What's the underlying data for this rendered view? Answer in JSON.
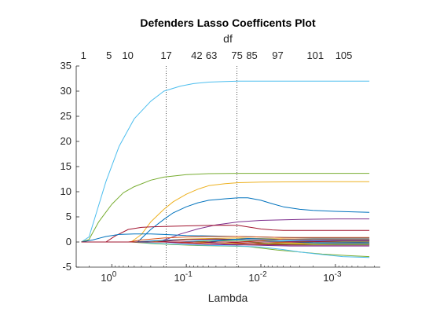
{
  "chart_data": {
    "type": "line",
    "title": "Defenders Lasso Coefficents Plot",
    "xlabel": "Lambda",
    "ylabel": "",
    "top_axis_label": "df",
    "x_scale": "log",
    "x_reversed": true,
    "xlim": [
      3.0,
      0.00025
    ],
    "ylim": [
      -5,
      35
    ],
    "x_tick_values": [
      1,
      0.1,
      0.01,
      0.001
    ],
    "x_tick_base": "10",
    "x_tick_exponents": [
      "0",
      "-1",
      "-2",
      "-3"
    ],
    "y_ticks": [
      -5,
      0,
      5,
      10,
      15,
      20,
      25,
      30,
      35
    ],
    "top_ticks": [
      {
        "label": "1",
        "lambda": 2.4
      },
      {
        "label": "5",
        "lambda": 1.09
      },
      {
        "label": "10",
        "lambda": 0.61
      },
      {
        "label": "17",
        "lambda": 0.186
      },
      {
        "label": "42",
        "lambda": 0.0726
      },
      {
        "label": "63",
        "lambda": 0.046
      },
      {
        "label": "75",
        "lambda": 0.0209
      },
      {
        "label": "85",
        "lambda": 0.0132
      },
      {
        "label": "97",
        "lambda": 0.00593
      },
      {
        "label": "101",
        "lambda": 0.00186
      },
      {
        "label": "105",
        "lambda": 0.000772
      }
    ],
    "reference_lines": [
      {
        "lambda": 0.186,
        "style": "dotted"
      },
      {
        "lambda": 0.0209,
        "style": "dotted"
      }
    ],
    "grid": false,
    "legend": "none",
    "series": [
      {
        "color": "#4DBEEE",
        "x": [
          2.56,
          2.02,
          1.2,
          0.8,
          0.5,
          0.3,
          0.2,
          0.12,
          0.08,
          0.05,
          0.03,
          0.02,
          0.01,
          0.005,
          0.002,
          0.00035
        ],
        "values": [
          0,
          1.0,
          12.0,
          19.0,
          24.5,
          28.0,
          30.0,
          31.0,
          31.5,
          31.8,
          31.9,
          32.0,
          32.0,
          32.0,
          32.0,
          32.0
        ]
      },
      {
        "color": "#77AC30",
        "x": [
          2.56,
          2.02,
          1.5,
          1.0,
          0.7,
          0.5,
          0.3,
          0.2,
          0.1,
          0.05,
          0.02,
          0.01,
          0.001,
          0.00035
        ],
        "values": [
          0,
          0.5,
          4.0,
          7.5,
          9.8,
          11.0,
          12.3,
          12.9,
          13.4,
          13.6,
          13.65,
          13.65,
          13.65,
          13.65
        ]
      },
      {
        "color": "#EDB120",
        "x": [
          2.56,
          0.55,
          0.4,
          0.3,
          0.2,
          0.15,
          0.1,
          0.07,
          0.05,
          0.03,
          0.02,
          0.01,
          0.005,
          0.002,
          0.00035
        ],
        "values": [
          0,
          0,
          1.5,
          4.0,
          6.5,
          8.0,
          9.5,
          10.5,
          11.2,
          11.6,
          11.8,
          11.9,
          11.95,
          12.0,
          12.0
        ]
      },
      {
        "color": "#0072BD",
        "x": [
          2.56,
          0.45,
          0.3,
          0.2,
          0.15,
          0.1,
          0.07,
          0.05,
          0.03,
          0.02,
          0.015,
          0.01,
          0.007,
          0.005,
          0.003,
          0.002,
          0.001,
          0.0006,
          0.00035
        ],
        "values": [
          0,
          0,
          2.5,
          4.5,
          5.8,
          7.0,
          7.8,
          8.3,
          8.6,
          8.8,
          8.8,
          8.3,
          7.6,
          7.0,
          6.5,
          6.3,
          6.1,
          6.0,
          5.9
        ]
      },
      {
        "color": "#7E2F8E",
        "x": [
          2.56,
          0.25,
          0.18,
          0.12,
          0.07,
          0.04,
          0.02,
          0.01,
          0.003,
          0.001,
          0.00035
        ],
        "values": [
          0,
          0,
          0.6,
          1.6,
          2.6,
          3.4,
          4.0,
          4.3,
          4.5,
          4.6,
          4.6
        ]
      },
      {
        "color": "#A2142F",
        "x": [
          2.56,
          1.2,
          0.9,
          0.6,
          0.4,
          0.3,
          0.2,
          0.1,
          0.05,
          0.03,
          0.02,
          0.015,
          0.01,
          0.007,
          0.005,
          0.003,
          0.001,
          0.00035
        ],
        "values": [
          0,
          0,
          1.2,
          2.5,
          2.9,
          3.0,
          3.1,
          3.2,
          3.3,
          3.35,
          3.3,
          3.0,
          2.6,
          2.4,
          2.3,
          2.3,
          2.3,
          2.3
        ]
      },
      {
        "color": "#0072BD",
        "x": [
          2.56,
          1.8,
          1.2,
          0.8,
          0.5,
          0.3,
          0.2,
          0.1,
          0.05,
          0.02,
          0.01,
          0.005,
          0.002,
          0.001,
          0.00035
        ],
        "values": [
          0,
          0.4,
          1.1,
          1.5,
          1.6,
          1.6,
          1.5,
          1.3,
          1.2,
          1.1,
          1.0,
          0.9,
          0.8,
          0.8,
          0.8
        ]
      },
      {
        "color": "#D95319",
        "x": [
          2.56,
          0.6,
          0.4,
          0.2,
          0.1,
          0.05,
          0.02,
          0.01,
          0.005,
          0.001,
          0.00035
        ],
        "values": [
          0,
          0,
          0.4,
          0.8,
          1.0,
          1.1,
          1.1,
          1.0,
          0.9,
          0.9,
          0.9
        ]
      },
      {
        "color": "#EDB120",
        "x": [
          2.56,
          0.3,
          0.2,
          0.1,
          0.05,
          0.02,
          0.01,
          0.003,
          0.00035
        ],
        "values": [
          0,
          0,
          0.3,
          0.6,
          0.7,
          0.8,
          0.7,
          0.6,
          0.6
        ]
      },
      {
        "color": "#77AC30",
        "x": [
          2.56,
          0.55,
          0.3,
          0.15,
          0.07,
          0.03,
          0.015,
          0.01,
          0.006,
          0.003,
          0.0015,
          0.0007,
          0.00035
        ],
        "values": [
          0,
          0,
          -0.3,
          -0.5,
          -0.7,
          -0.8,
          -0.9,
          -1.2,
          -1.6,
          -2.0,
          -2.4,
          -2.7,
          -2.9
        ]
      },
      {
        "color": "#4DBEEE",
        "x": [
          2.56,
          0.5,
          0.3,
          0.15,
          0.08,
          0.04,
          0.02,
          0.01,
          0.005,
          0.003,
          0.0015,
          0.0008,
          0.00035
        ],
        "values": [
          0,
          0,
          -0.2,
          -0.4,
          -0.6,
          -0.7,
          -0.8,
          -1.0,
          -1.5,
          -2.0,
          -2.5,
          -2.9,
          -3.1
        ]
      },
      {
        "color": "#7E2F8E",
        "x": [
          2.56,
          0.2,
          0.1,
          0.05,
          0.02,
          0.01,
          0.005,
          0.002,
          0.00035
        ],
        "values": [
          0,
          0,
          -0.3,
          -0.5,
          -0.6,
          -0.6,
          -0.6,
          -0.6,
          -0.6
        ]
      },
      {
        "color": "#0072BD",
        "x": [
          2.56,
          0.5,
          0.3,
          0.15,
          0.08,
          0.04,
          0.02,
          0.01,
          0.005,
          0.002,
          0.00035
        ],
        "values": [
          0,
          0,
          0.2,
          0.4,
          0.5,
          0.6,
          0.5,
          0.3,
          0.1,
          0.0,
          -0.1
        ]
      },
      {
        "color": "#A2142F",
        "x": [
          2.56,
          0.25,
          0.15,
          0.08,
          0.04,
          0.02,
          0.01,
          0.005,
          0.002,
          0.00035
        ],
        "values": [
          0,
          0,
          0.3,
          0.5,
          0.6,
          0.5,
          0.4,
          0.3,
          0.2,
          0.2
        ]
      },
      {
        "color": "#D95319",
        "x": [
          2.56,
          0.15,
          0.08,
          0.04,
          0.02,
          0.01,
          0.005,
          0.002,
          0.00035
        ],
        "values": [
          0,
          0,
          -0.2,
          -0.3,
          -0.4,
          -0.3,
          -0.2,
          -0.2,
          -0.2
        ]
      },
      {
        "color": "#77AC30",
        "x": [
          2.56,
          0.1,
          0.05,
          0.02,
          0.01,
          0.005,
          0.002,
          0.00035
        ],
        "values": [
          0,
          0,
          0.2,
          0.3,
          0.3,
          0.2,
          0.1,
          0.1
        ]
      },
      {
        "color": "#EDB120",
        "x": [
          2.56,
          0.08,
          0.04,
          0.02,
          0.01,
          0.005,
          0.002,
          0.00035
        ],
        "values": [
          0,
          0,
          -0.2,
          -0.3,
          -0.5,
          -0.4,
          -0.3,
          -0.3
        ]
      },
      {
        "color": "#4DBEEE",
        "x": [
          2.56,
          0.12,
          0.06,
          0.03,
          0.015,
          0.008,
          0.004,
          0.002,
          0.00035
        ],
        "values": [
          0,
          0,
          0.3,
          0.4,
          0.4,
          0.3,
          0.3,
          0.2,
          0.2
        ]
      },
      {
        "color": "#7E2F8E",
        "x": [
          2.56,
          0.06,
          0.03,
          0.015,
          0.008,
          0.004,
          0.002,
          0.00035
        ],
        "values": [
          0,
          0,
          -0.4,
          -0.6,
          -0.7,
          -0.8,
          -0.8,
          -0.8
        ]
      },
      {
        "color": "#0072BD",
        "x": [
          2.56,
          0.05,
          0.03,
          0.015,
          0.008,
          0.004,
          0.002,
          0.00035
        ],
        "values": [
          0,
          0,
          0.4,
          0.7,
          0.6,
          0.5,
          0.5,
          0.5
        ]
      },
      {
        "color": "#A2142F",
        "x": [
          2.56,
          0.03,
          0.015,
          0.008,
          0.004,
          0.002,
          0.00035
        ],
        "values": [
          0,
          0,
          -0.3,
          -0.5,
          -0.6,
          -0.6,
          -0.6
        ]
      },
      {
        "color": "#D95319",
        "x": [
          2.56,
          0.02,
          0.01,
          0.005,
          0.002,
          0.00035
        ],
        "values": [
          0,
          0,
          0.3,
          0.6,
          0.6,
          0.6
        ]
      },
      {
        "color": "#77AC30",
        "x": [
          2.56,
          0.015,
          0.008,
          0.004,
          0.002,
          0.00035
        ],
        "values": [
          0,
          0,
          -0.3,
          -0.4,
          -0.5,
          -0.5
        ]
      },
      {
        "color": "#4DBEEE",
        "x": [
          2.56,
          0.01,
          0.005,
          0.002,
          0.001,
          0.00035
        ],
        "values": [
          0,
          0,
          0.2,
          0.4,
          0.4,
          0.4
        ]
      },
      {
        "color": "#EDB120",
        "x": [
          2.56,
          0.008,
          0.004,
          0.002,
          0.001,
          0.00035
        ],
        "values": [
          0,
          0,
          -0.2,
          -0.3,
          -0.3,
          -0.3
        ]
      },
      {
        "color": "#7E2F8E",
        "x": [
          2.56,
          0.005,
          0.003,
          0.0015,
          0.0008,
          0.00035
        ],
        "values": [
          0,
          0,
          0.2,
          0.3,
          0.3,
          0.3
        ]
      },
      {
        "color": "#0072BD",
        "x": [
          2.56,
          0.004,
          0.002,
          0.001,
          0.00035
        ],
        "values": [
          0,
          0,
          -0.2,
          -0.3,
          -0.3
        ]
      },
      {
        "color": "#A2142F",
        "x": [
          2.56,
          0.003,
          0.0015,
          0.0008,
          0.00035
        ],
        "values": [
          0,
          0,
          0.1,
          0.2,
          0.2
        ]
      }
    ]
  }
}
